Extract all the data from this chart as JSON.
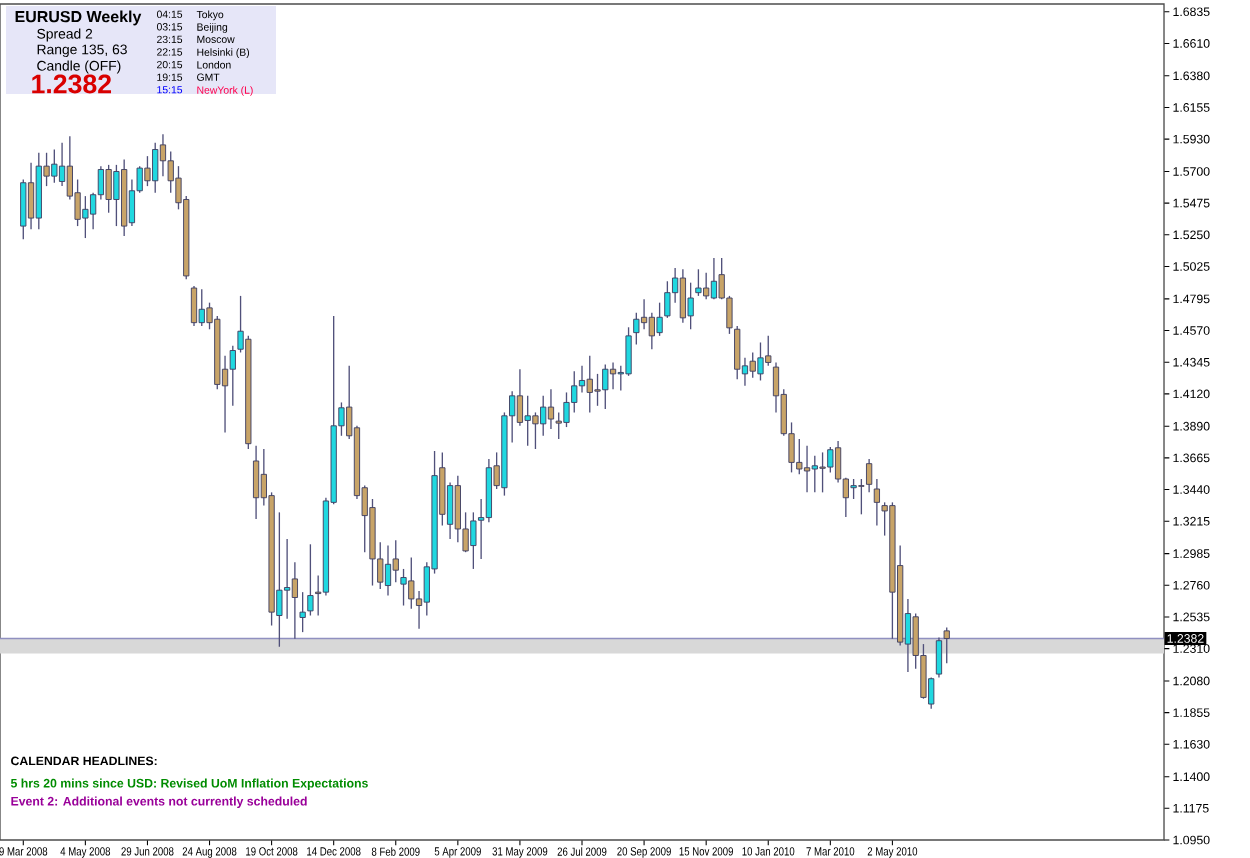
{
  "chart_data": {
    "type": "candlestick",
    "title": "EURUSD  Weekly",
    "annotations": [
      "Spread  2",
      "Range  135, 63",
      "Candle  (OFF)",
      "1.2382",
      "04:15",
      "Tokyo",
      "03:15",
      "Beijing",
      "23:15",
      "Moscow",
      "22:15",
      "Helsinki (B)",
      "20:15",
      "London",
      "19:15",
      "GMT",
      "15:15",
      "NewYork (L)",
      "CALENDAR  HEADLINES:",
      "5 hrs 20 mins since USD: Revised UoM Inflation Expectations",
      "Event 2: Additional events not currently scheduled"
    ],
    "colors": [
      "#20d8e0",
      "#c8a468",
      "#20d8e0",
      "#c8a468",
      "#20d8e0",
      "#20d8e0",
      "#c8a468",
      "#c8a468",
      "#20d8e0",
      "#20d8e0",
      "#20d8e0",
      "#c8a468",
      "#20d8e0",
      "#c8a468",
      "#20d8e0",
      "#20d8e0",
      "#c8a468",
      "#20d8e0",
      "#c8a468",
      "#c8a468",
      "#c8a468",
      "#c8a468",
      "#c8a468",
      "#20d8e0",
      "#c8a468",
      "#c8a468",
      "#c8a468",
      "#20d8e0",
      "#20d8e0",
      "#c8a468",
      "#c8a468",
      "#c8a468",
      "#c8a468",
      "#20d8e0",
      "#20d8e0",
      "#c8a468",
      "#20d8e0",
      "#20d8e0",
      "#c8a468",
      "#20d8e0",
      "#20d8e0",
      "#20d8e0",
      "#c8a468",
      "#c8a468",
      "#c8a468",
      "#c8a468",
      "#c8a468",
      "#20d8e0",
      "#c8a468",
      "#20d8e0",
      "#c8a468",
      "#c8a468",
      "#20d8e0",
      "#20d8e0",
      "#c8a468",
      "#20d8e0",
      "#c8a468",
      "#c8a468",
      "#20d8e0",
      "#20d8e0",
      "#20d8e0",
      "#c8a468",
      "#20d8e0",
      "#20d8e0",
      "#c8a468",
      "#20d8e0",
      "#c8a468",
      "#20d8e0",
      "#c8a468",
      "#c8a468",
      "#20d8e0",
      "#20d8e0",
      "#20d8e0",
      "#c8a468",
      "#c8a468",
      "#20d8e0",
      "#c8a468",
      "#20d8e0",
      "#20d8e0",
      "#20d8e0",
      "#c8a468",
      "#c8a468",
      "#20d8e0",
      "#20d8e0",
      "#20d8e0",
      "#c8a468",
      "#20d8e0",
      "#20d8e0",
      "#c8a468",
      "#20d8e0",
      "#c8a468",
      "#c8a468",
      "#c8a468",
      "#20d8e0",
      "#c8a468",
      "#20d8e0",
      "#c8a468",
      "#c8a468",
      "#c8a468",
      "#c8a468",
      "#c8a468",
      "#c8a468",
      "#20d8e0",
      "#c8a468",
      "#20d8e0",
      "#c8a468",
      "#c8a468",
      "#20d8e0",
      "#c8a468",
      "#c8a468",
      "#c8a468",
      "#c8a468",
      "#c8a468",
      "#c8a468",
      "#20d8e0",
      "#c8a468",
      "#c8a468",
      "#20d8e0",
      "#20d8e0",
      "#c8a468"
    ],
    "x": [
      "2008-03-09",
      "2008-03-16",
      "2008-03-23",
      "2008-03-30",
      "2008-04-06",
      "2008-04-13",
      "2008-04-20",
      "2008-04-27",
      "2008-05-04",
      "2008-05-11",
      "2008-05-18",
      "2008-05-25",
      "2008-06-01",
      "2008-06-08",
      "2008-06-15",
      "2008-06-22",
      "2008-06-29",
      "2008-07-06",
      "2008-07-13",
      "2008-07-20",
      "2008-07-27",
      "2008-08-03",
      "2008-08-10",
      "2008-08-17",
      "2008-08-24",
      "2008-08-31",
      "2008-09-07",
      "2008-09-14",
      "2008-09-21",
      "2008-09-28",
      "2008-10-05",
      "2008-10-12",
      "2008-10-19",
      "2008-10-26",
      "2008-11-02",
      "2008-11-09",
      "2008-11-16",
      "2008-11-23",
      "2008-11-30",
      "2008-12-07",
      "2008-12-14",
      "2008-12-21",
      "2008-12-28",
      "2009-01-04",
      "2009-01-11",
      "2009-01-18",
      "2009-01-25",
      "2009-02-01",
      "2009-02-08",
      "2009-02-15",
      "2009-02-22",
      "2009-03-01",
      "2009-03-08",
      "2009-03-15",
      "2009-03-22",
      "2009-03-29",
      "2009-04-05",
      "2009-04-12",
      "2009-04-19",
      "2009-04-26",
      "2009-05-03",
      "2009-05-10",
      "2009-05-17",
      "2009-05-24",
      "2009-05-31",
      "2009-06-07",
      "2009-06-14",
      "2009-06-21",
      "2009-06-28",
      "2009-07-05",
      "2009-07-12",
      "2009-07-19",
      "2009-07-26",
      "2009-08-02",
      "2009-08-09",
      "2009-08-16",
      "2009-08-23",
      "2009-08-30",
      "2009-09-06",
      "2009-09-13",
      "2009-09-20",
      "2009-09-27",
      "2009-10-04",
      "2009-10-11",
      "2009-10-18",
      "2009-10-25",
      "2009-11-01",
      "2009-11-08",
      "2009-11-15",
      "2009-11-22",
      "2009-11-29",
      "2009-12-06",
      "2009-12-13",
      "2009-12-20",
      "2009-12-27",
      "2010-01-03",
      "2010-01-10",
      "2010-01-17",
      "2010-01-24",
      "2010-01-31",
      "2010-02-07",
      "2010-02-14",
      "2010-02-21",
      "2010-02-28",
      "2010-03-07",
      "2010-03-14",
      "2010-03-21",
      "2010-03-28",
      "2010-04-04",
      "2010-04-11",
      "2010-04-18",
      "2010-04-25",
      "2010-05-02",
      "2010-05-09",
      "2010-05-16",
      "2010-05-23",
      "2010-05-30",
      "2010-06-06",
      "2010-06-13",
      "2010-06-20"
    ],
    "ohlc": [
      [
        1.5312,
        1.5643,
        1.5218,
        1.562
      ],
      [
        1.562,
        1.5762,
        1.5289,
        1.5369
      ],
      [
        1.5369,
        1.5833,
        1.5289,
        1.5738
      ],
      [
        1.5738,
        1.5833,
        1.5596,
        1.5667
      ],
      [
        1.5667,
        1.5856,
        1.562,
        1.5752
      ],
      [
        1.5629,
        1.5904,
        1.5596,
        1.5738
      ],
      [
        1.5738,
        1.5951,
        1.5501,
        1.5525
      ],
      [
        1.5549,
        1.5643,
        1.5312,
        1.536
      ],
      [
        1.5369,
        1.5525,
        1.5227,
        1.5431
      ],
      [
        1.5397,
        1.5549,
        1.5289,
        1.5535
      ],
      [
        1.5535,
        1.5738,
        1.5501,
        1.5714
      ],
      [
        1.5714,
        1.5747,
        1.5407,
        1.5501
      ],
      [
        1.5501,
        1.5747,
        1.5312,
        1.57
      ],
      [
        1.5714,
        1.5785,
        1.5241,
        1.5312
      ],
      [
        1.5336,
        1.5643,
        1.5312,
        1.5563
      ],
      [
        1.5563,
        1.5738,
        1.5549,
        1.5724
      ],
      [
        1.5724,
        1.5809,
        1.5596,
        1.5634
      ],
      [
        1.5634,
        1.5904,
        1.5549,
        1.5856
      ],
      [
        1.5889,
        1.5965,
        1.5667,
        1.5776
      ],
      [
        1.5776,
        1.5842,
        1.5549,
        1.5634
      ],
      [
        1.5653,
        1.5738,
        1.5431,
        1.5478
      ],
      [
        1.5501,
        1.5525,
        1.4934,
        1.4958
      ],
      [
        1.4872,
        1.4887,
        1.4603,
        1.4626
      ],
      [
        1.4626,
        1.4863,
        1.4603,
        1.4721
      ],
      [
        1.4731,
        1.4768,
        1.4579,
        1.4626
      ],
      [
        1.465,
        1.4674,
        1.4153,
        1.4187
      ],
      [
        1.4295,
        1.439,
        1.3846,
        1.4177
      ],
      [
        1.4295,
        1.4461,
        1.4035,
        1.4428
      ],
      [
        1.4437,
        1.4816,
        1.4414,
        1.4565
      ],
      [
        1.4508,
        1.4532,
        1.3728,
        1.3766
      ],
      [
        1.3643,
        1.3751,
        1.3231,
        1.3382
      ],
      [
        1.3548,
        1.3728,
        1.3326,
        1.3382
      ],
      [
        1.3397,
        1.342,
        1.2474,
        1.2569
      ],
      [
        1.2545,
        1.3278,
        1.2323,
        1.2725
      ],
      [
        1.2725,
        1.3089,
        1.2522,
        1.2744
      ],
      [
        1.2805,
        1.2924,
        1.238,
        1.2673
      ],
      [
        1.2531,
        1.2711,
        1.2427,
        1.2569
      ],
      [
        1.2578,
        1.3051,
        1.2545,
        1.2687
      ],
      [
        1.2711,
        1.2829,
        1.2545,
        1.2701
      ],
      [
        1.2711,
        1.3382,
        1.2687,
        1.3359
      ],
      [
        1.3349,
        1.4674,
        1.3335,
        1.3893
      ],
      [
        1.3893,
        1.4059,
        1.3822,
        1.4021
      ],
      [
        1.4026,
        1.4319,
        1.3799,
        1.3822
      ],
      [
        1.3879,
        1.3893,
        1.3373,
        1.3397
      ],
      [
        1.3453,
        1.3468,
        1.2995,
        1.3255
      ],
      [
        1.3312,
        1.3373,
        1.2758,
        1.2947
      ],
      [
        1.2947,
        1.3066,
        1.2734,
        1.2782
      ],
      [
        1.2758,
        1.3042,
        1.2687,
        1.2909
      ],
      [
        1.2947,
        1.308,
        1.2782,
        1.2867
      ],
      [
        1.2768,
        1.2876,
        1.2616,
        1.2815
      ],
      [
        1.2791,
        1.2957,
        1.2593,
        1.2663
      ],
      [
        1.2663,
        1.272,
        1.2451,
        1.2616
      ],
      [
        1.264,
        1.2924,
        1.2545,
        1.2891
      ],
      [
        1.2876,
        1.3714,
        1.2843,
        1.3539
      ],
      [
        1.3595,
        1.3704,
        1.3184,
        1.3264
      ],
      [
        1.3193,
        1.3491,
        1.3089,
        1.3468
      ],
      [
        1.3468,
        1.3539,
        1.3066,
        1.316
      ],
      [
        1.316,
        1.3278,
        1.2995,
        1.3004
      ],
      [
        1.3042,
        1.3278,
        1.2876,
        1.3217
      ],
      [
        1.3222,
        1.3373,
        1.2947,
        1.3241
      ],
      [
        1.3241,
        1.3657,
        1.3207,
        1.3595
      ],
      [
        1.3609,
        1.3704,
        1.3444,
        1.3468
      ],
      [
        1.3453,
        1.3988,
        1.3397,
        1.3964
      ],
      [
        1.3964,
        1.4139,
        1.3775,
        1.4106
      ],
      [
        1.4106,
        1.4295,
        1.3893,
        1.3917
      ],
      [
        1.3931,
        1.4106,
        1.3751,
        1.3964
      ],
      [
        1.3964,
        1.3988,
        1.3728,
        1.3907
      ],
      [
        1.3907,
        1.4106,
        1.3822,
        1.4026
      ],
      [
        1.4026,
        1.4153,
        1.387,
        1.3941
      ],
      [
        1.3926,
        1.3988,
        1.3799,
        1.3912
      ],
      [
        1.3917,
        1.413,
        1.3884,
        1.4059
      ],
      [
        1.4059,
        1.4281,
        1.3988,
        1.4177
      ],
      [
        1.4177,
        1.4319,
        1.413,
        1.4215
      ],
      [
        1.4224,
        1.439,
        1.3988,
        1.413
      ],
      [
        1.4149,
        1.4262,
        1.4035,
        1.4139
      ],
      [
        1.4149,
        1.4328,
        1.4012,
        1.4295
      ],
      [
        1.4295,
        1.4343,
        1.4153,
        1.4262
      ],
      [
        1.4262,
        1.4319,
        1.4144,
        1.4272
      ],
      [
        1.4262,
        1.4593,
        1.4248,
        1.4532
      ],
      [
        1.4555,
        1.4697,
        1.447,
        1.465
      ],
      [
        1.4664,
        1.4792,
        1.4579,
        1.4626
      ],
      [
        1.4664,
        1.4697,
        1.4437,
        1.4532
      ],
      [
        1.4555,
        1.4768,
        1.4532,
        1.4664
      ],
      [
        1.4674,
        1.492,
        1.466,
        1.4839
      ],
      [
        1.4839,
        1.5014,
        1.4768,
        1.4943
      ],
      [
        1.4943,
        1.5005,
        1.4626,
        1.466
      ],
      [
        1.4674,
        1.491,
        1.4579,
        1.4801
      ],
      [
        1.4839,
        1.5005,
        1.4816,
        1.4872
      ],
      [
        1.4872,
        1.4981,
        1.4792,
        1.4816
      ],
      [
        1.4801,
        1.5085,
        1.4792,
        1.492
      ],
      [
        1.4967,
        1.5085,
        1.4792,
        1.4801
      ],
      [
        1.4801,
        1.4816,
        1.4546,
        1.4589
      ],
      [
        1.4579,
        1.4603,
        1.4224,
        1.4295
      ],
      [
        1.4262,
        1.4376,
        1.4177,
        1.4319
      ],
      [
        1.4352,
        1.4414,
        1.4234,
        1.4281
      ],
      [
        1.4262,
        1.4485,
        1.4215,
        1.4376
      ],
      [
        1.439,
        1.4532,
        1.4319,
        1.4343
      ],
      [
        1.431,
        1.4343,
        1.3988,
        1.4106
      ],
      [
        1.4116,
        1.4153,
        1.3822,
        1.3837
      ],
      [
        1.3837,
        1.3917,
        1.3562,
        1.3633
      ],
      [
        1.3633,
        1.3799,
        1.3548,
        1.3586
      ],
      [
        1.3595,
        1.3751,
        1.342,
        1.3572
      ],
      [
        1.3586,
        1.368,
        1.342,
        1.3609
      ],
      [
        1.36,
        1.3704,
        1.342,
        1.3591
      ],
      [
        1.36,
        1.3742,
        1.3562,
        1.3723
      ],
      [
        1.3737,
        1.3785,
        1.3491,
        1.3515
      ],
      [
        1.3515,
        1.3524,
        1.3245,
        1.3382
      ],
      [
        1.3453,
        1.3515,
        1.3373,
        1.3468
      ],
      [
        1.3468,
        1.3515,
        1.3264,
        1.3463
      ],
      [
        1.3624,
        1.3657,
        1.342,
        1.3477
      ],
      [
        1.3444,
        1.3515,
        1.3184,
        1.3349
      ],
      [
        1.3326,
        1.3349,
        1.3113,
        1.3288
      ],
      [
        1.3326,
        1.3349,
        1.238,
        1.2711
      ],
      [
        1.29,
        1.3042,
        1.2332,
        1.2356
      ],
      [
        1.2342,
        1.2663,
        1.2143,
        1.2559
      ],
      [
        1.2536,
        1.2559,
        1.2167,
        1.2261
      ],
      [
        1.2261,
        1.2342,
        1.1954,
        1.1963
      ],
      [
        1.1916,
        1.2105,
        1.1883,
        1.2096
      ],
      [
        1.2129,
        1.2389,
        1.2105,
        1.2366
      ],
      [
        1.2436,
        1.246,
        1.2205,
        1.2382
      ]
    ],
    "xlim": [
      "2008-02-17",
      "2011-01-02"
    ],
    "ylim": [
      1.095,
      1.689
    ],
    "xticks": [
      {
        "value": "2008-03-09",
        "label": "9 Mar 2008"
      },
      {
        "value": "2008-05-04",
        "label": "4 May 2008"
      },
      {
        "value": "2008-06-29",
        "label": "29 Jun 2008"
      },
      {
        "value": "2008-08-24",
        "label": "24 Aug 2008"
      },
      {
        "value": "2008-10-19",
        "label": "19 Oct 2008"
      },
      {
        "value": "2008-12-14",
        "label": "14 Dec 2008"
      },
      {
        "value": "2009-02-08",
        "label": "8 Feb 2009"
      },
      {
        "value": "2009-04-05",
        "label": "5 Apr 2009"
      },
      {
        "value": "2009-05-31",
        "label": "31 May 2009"
      },
      {
        "value": "2009-07-26",
        "label": "26 Jul 2009"
      },
      {
        "value": "2009-09-20",
        "label": "20 Sep 2009"
      },
      {
        "value": "2009-11-15",
        "label": "15 Nov 2009"
      },
      {
        "value": "2010-01-10",
        "label": "10 Jan 2010"
      },
      {
        "value": "2010-03-07",
        "label": "7 Mar 2010"
      },
      {
        "value": "2010-05-02",
        "label": "2 May 2010"
      }
    ],
    "yticks": [
      {
        "value": 1.095,
        "label": "1.0950"
      },
      {
        "value": 1.1175,
        "label": "1.1175"
      },
      {
        "value": 1.14,
        "label": "1.1400"
      },
      {
        "value": 1.163,
        "label": "1.1630"
      },
      {
        "value": 1.1855,
        "label": "1.1855"
      },
      {
        "value": 1.208,
        "label": "1.2080"
      },
      {
        "value": 1.231,
        "label": "1.2310"
      },
      {
        "value": 1.2535,
        "label": "1.2535"
      },
      {
        "value": 1.276,
        "label": "1.2760"
      },
      {
        "value": 1.2985,
        "label": "1.2985"
      },
      {
        "value": 1.3215,
        "label": "1.3215"
      },
      {
        "value": 1.344,
        "label": "1.3440"
      },
      {
        "value": 1.3665,
        "label": "1.3665"
      },
      {
        "value": 1.389,
        "label": "1.3890"
      },
      {
        "value": 1.412,
        "label": "1.4120"
      },
      {
        "value": 1.4345,
        "label": "1.4345"
      },
      {
        "value": 1.457,
        "label": "1.4570"
      },
      {
        "value": 1.4795,
        "label": "1.4795"
      },
      {
        "value": 1.5025,
        "label": "1.5025"
      },
      {
        "value": 1.525,
        "label": "1.5250"
      },
      {
        "value": 1.5475,
        "label": "1.5475"
      },
      {
        "value": 1.57,
        "label": "1.5700"
      },
      {
        "value": 1.593,
        "label": "1.5930"
      },
      {
        "value": 1.6155,
        "label": "1.6155"
      },
      {
        "value": 1.638,
        "label": "1.6380"
      },
      {
        "value": 1.661,
        "label": "1.6610"
      },
      {
        "value": 1.6835,
        "label": "1.6835"
      }
    ],
    "ref_lines": [
      {
        "axis": "y",
        "value": 1.2382,
        "label": "1.2382",
        "color": "#9090c0"
      }
    ],
    "bands": [
      {
        "axis": "y",
        "from": 1.2275,
        "to": 1.2382,
        "color": "#d8d8d8"
      }
    ]
  }
}
